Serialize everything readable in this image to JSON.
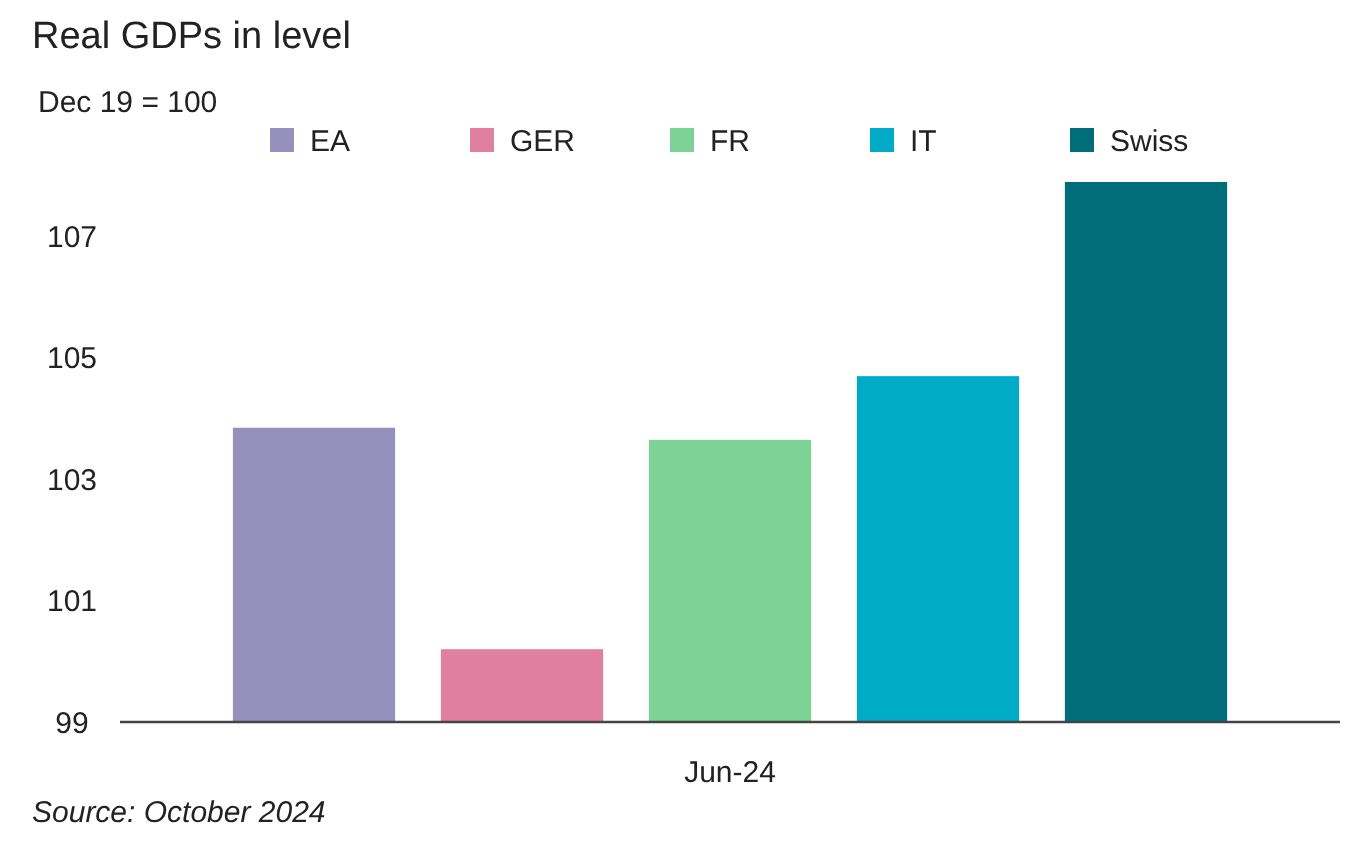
{
  "chart_data": {
    "type": "bar",
    "title": "Real GDPs in level",
    "ylabel": "Dec 19 = 100",
    "categories": [
      "Jun-24"
    ],
    "series": [
      {
        "name": "EA",
        "color": "#9690bd",
        "values": [
          103.85
        ]
      },
      {
        "name": "GER",
        "color": "#e07fa0",
        "values": [
          100.2
        ]
      },
      {
        "name": "FR",
        "color": "#7dd396",
        "values": [
          103.65
        ]
      },
      {
        "name": "IT",
        "color": "#00abc8",
        "values": [
          104.7
        ]
      },
      {
        "name": "Swiss",
        "color": "#006e7a",
        "values": [
          107.9
        ]
      }
    ],
    "ylim": [
      99,
      107.9
    ],
    "yticks": [
      99,
      101,
      103,
      105,
      107
    ],
    "grid": false,
    "legend": "top",
    "annotations": [
      "Source: October 2024"
    ]
  }
}
